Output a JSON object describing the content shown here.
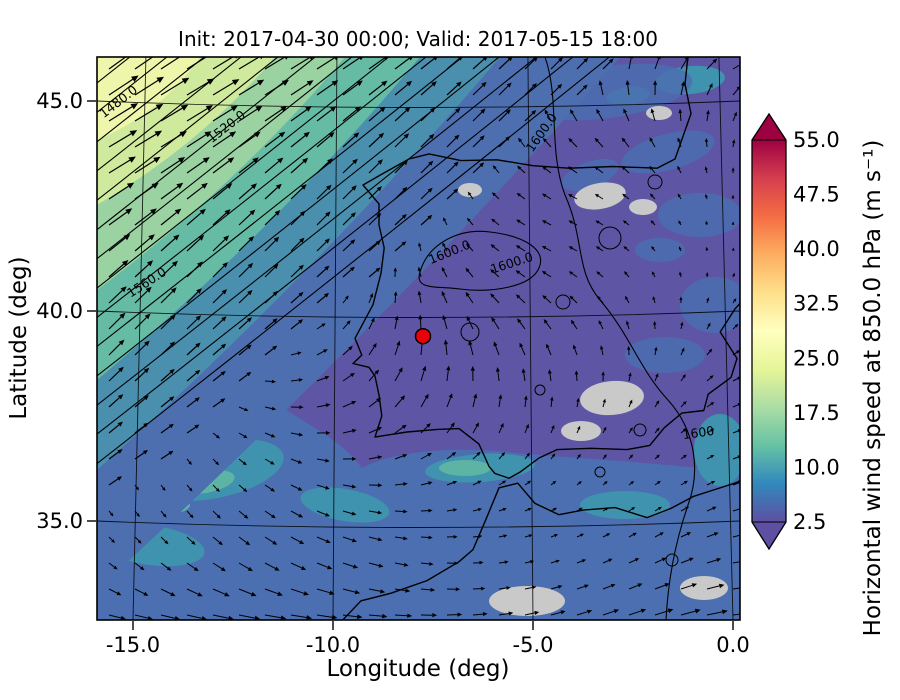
{
  "figure": {
    "title": "Init: 2017-04-30 00:00; Valid: 2017-05-15 18:00",
    "xlabel": "Longitude (deg)",
    "ylabel": "Latitude (deg)",
    "colorbar_label": "Horizontal wind speed at 850.0 hPa (m s⁻¹)"
  },
  "chart_data": {
    "type": "heatmap",
    "subtype": "meteorological map: filled wind-speed contours + height contours + wind vectors + coastlines",
    "title": "Init: 2017-04-30 00:00; Valid: 2017-05-15 18:00",
    "init_time": "2017-04-30 00:00",
    "valid_time": "2017-05-15 18:00",
    "xlabel": "Longitude (deg)",
    "ylabel": "Latitude (deg)",
    "x_ticks": [
      -15.0,
      -10.0,
      -5.0,
      0.0
    ],
    "y_ticks": [
      45.0,
      40.0,
      35.0
    ],
    "xlim": [
      -15.9,
      0.2
    ],
    "ylim": [
      32.6,
      46.1
    ],
    "grid": true,
    "colorbar": {
      "label": "Horizontal wind speed at 850.0 hPa (m s⁻¹)",
      "variable": "Horizontal wind speed",
      "level_hPa": 850.0,
      "units": "m s⁻¹",
      "ticks": [
        55.0,
        47.5,
        40.0,
        32.5,
        25.0,
        17.5,
        10.0,
        2.5
      ],
      "vmin": 2.5,
      "vmax": 55.0,
      "extend": "both",
      "colormap": "Spectral_r",
      "colormap_stops": [
        "#5e4fa2",
        "#3288bd",
        "#66c2a5",
        "#abdda4",
        "#e6f598",
        "#ffffbf",
        "#fee08b",
        "#fdae61",
        "#f46d43",
        "#d53e4f",
        "#9e0142"
      ]
    },
    "contour_labels": [
      {
        "value": "1480.0",
        "lon": -15.3,
        "lat": 44.9,
        "rot": -38
      },
      {
        "value": "1520.0",
        "lon": -12.6,
        "lat": 44.3,
        "rot": -38
      },
      {
        "value": "1560.0",
        "lon": -14.6,
        "lat": 40.6,
        "rot": -33
      },
      {
        "value": "1600.0",
        "lon": -7.05,
        "lat": 41.3,
        "rot": -22
      },
      {
        "value": "1600.0",
        "lon": -5.5,
        "lat": 41.05,
        "rot": -18
      },
      {
        "value": "1600.0",
        "lon": -4.7,
        "lat": 44.2,
        "rot": -55
      },
      {
        "value": "1600",
        "lon": -0.85,
        "lat": 37.0,
        "rot": -8
      }
    ],
    "marker": {
      "lon": -7.75,
      "lat": 39.4,
      "color": "#e8000b"
    },
    "missing_data_color": "#c9c9c9",
    "wind_field_summary": [
      {
        "region": "northwest quadrant (Atlantic, upper-left diagonal band)",
        "speed_ms": "15-27.5",
        "direction": "from southwest toward northeast"
      },
      {
        "region": "centre (Iberian Peninsula)",
        "speed_ms": "2.5-7.5"
      },
      {
        "region": "southern Atlantic / Alboran Sea / Mediterranean",
        "speed_ms": "5-12.5",
        "direction": "mostly eastward"
      }
    ]
  }
}
